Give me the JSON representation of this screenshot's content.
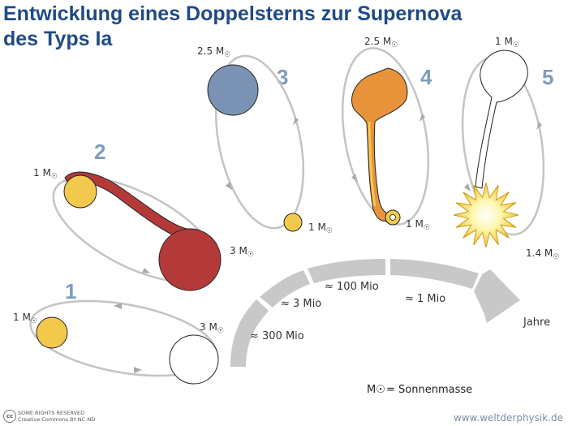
{
  "title_line1": "Entwicklung eines Doppelsterns zur Supernova",
  "title_line2": "des Typs Ia",
  "stages": [
    {
      "number": "1",
      "star_a_mass": "1 M",
      "star_b_mass": "3 M"
    },
    {
      "number": "2",
      "star_a_mass": "1 M",
      "star_b_mass": "3 M"
    },
    {
      "number": "3",
      "star_a_mass": "2.5 M",
      "star_b_mass": "1 M"
    },
    {
      "number": "4",
      "star_a_mass": "2.5 M",
      "star_b_mass": "1 M"
    },
    {
      "number": "5",
      "star_a_mass": "1 M",
      "star_b_mass": "1.4 M"
    }
  ],
  "sun_symbol": "☉",
  "timeline": {
    "segments": [
      "≈ 300 Mio",
      "≈ 3 Mio",
      "≈ 100 Mio",
      "≈ 1 Mio"
    ],
    "end_label": "Jahre"
  },
  "legend": "= Sonnenmasse",
  "legend_symbol": "M☉",
  "footer": {
    "cc_icon": "cc",
    "license_line1": "SOME RIGHTS RESERVED",
    "license_line2": "Creative Commons BY-NC-ND",
    "website": "www.weltderphysik.de"
  },
  "colors": {
    "title": "#1f4a85",
    "stage_number": "#7f9cc0",
    "orbit": "#c4c4c4",
    "yellow_star": "#f2c94c",
    "red_giant": "#b43a3a",
    "blue_star": "#7a93b4",
    "orange_giant": "#e8923a",
    "timeline_arrow": "#c8c8c8"
  }
}
